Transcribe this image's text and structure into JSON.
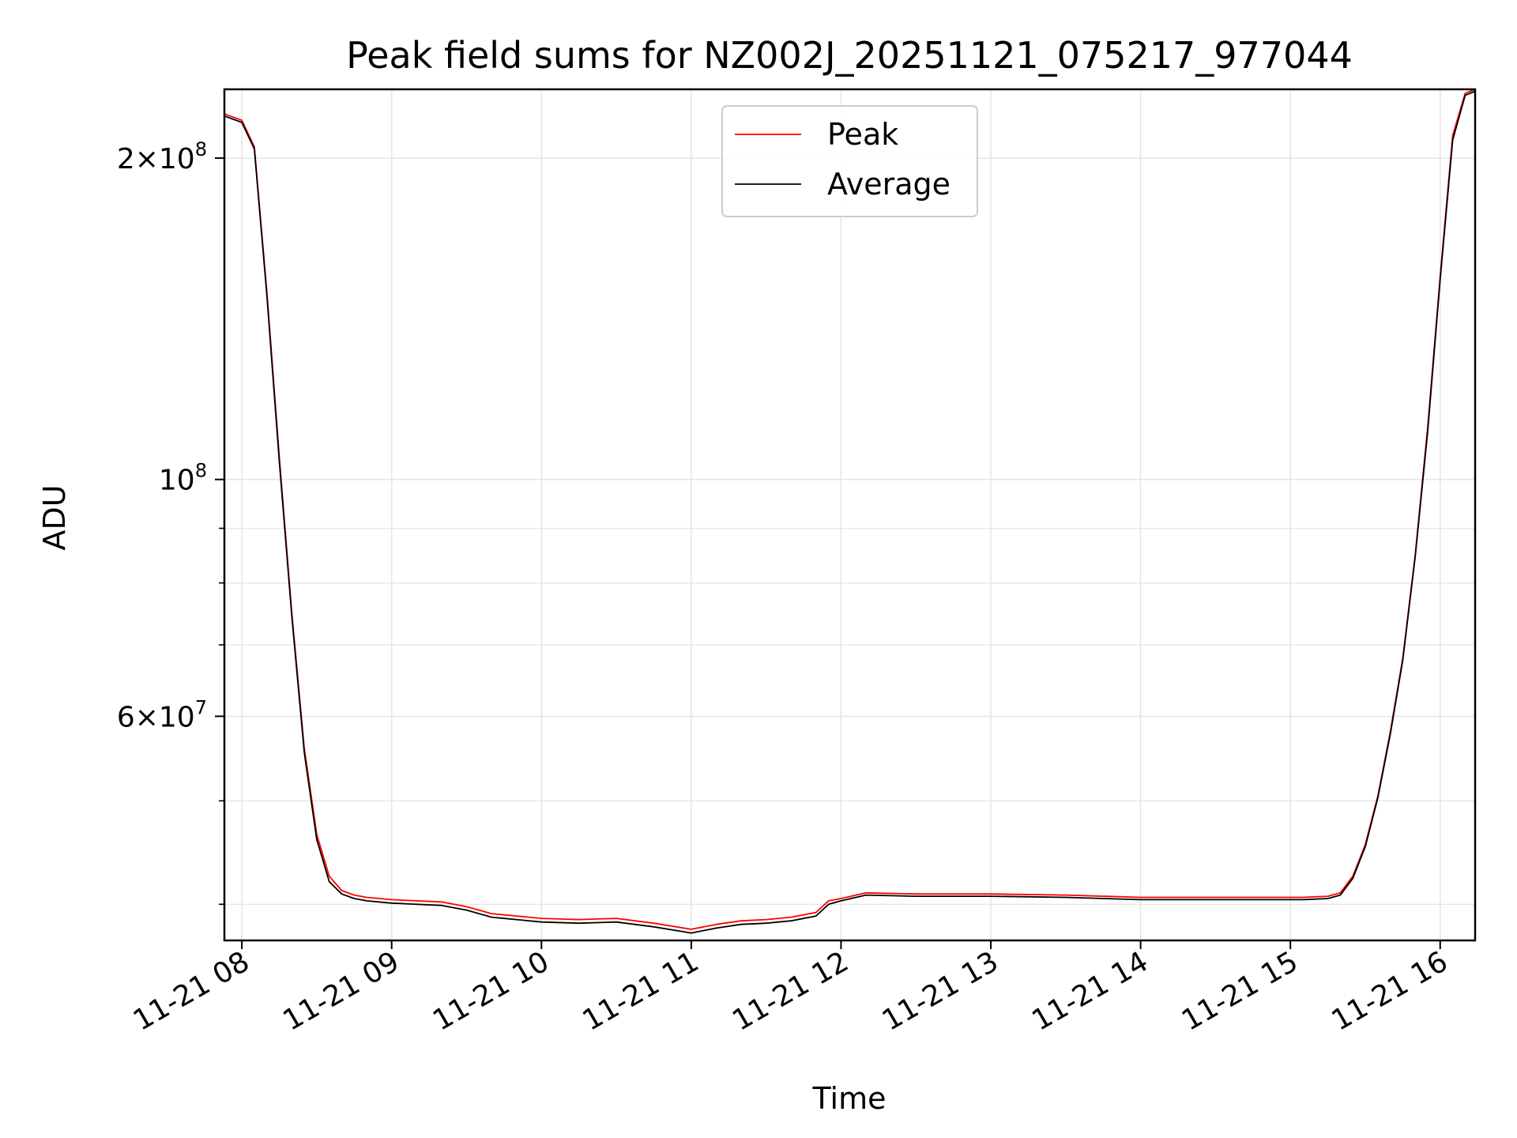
{
  "chart_data": {
    "type": "line",
    "title": "Peak field sums for NZ002J_20251121_075217_977044",
    "xlabel": "Time",
    "ylabel": "ADU",
    "y_scale": "log",
    "ylim": [
      37000000,
      232000000
    ],
    "xlim": [
      "2025-11-21 07:53",
      "2025-11-21 16:14"
    ],
    "grid": true,
    "legend_position": "upper center",
    "x_tick_labels": [
      "11-21 08",
      "11-21 09",
      "11-21 10",
      "11-21 11",
      "11-21 12",
      "11-21 13",
      "11-21 14",
      "11-21 15",
      "11-21 16"
    ],
    "y_tick_labels": [
      {
        "value": 200000000,
        "mantissa": "2",
        "times": "×",
        "base": "10",
        "exponent": "8"
      },
      {
        "value": 100000000,
        "mantissa": "",
        "times": "",
        "base": "10",
        "exponent": "8"
      },
      {
        "value": 60000000,
        "mantissa": "6",
        "times": "×",
        "base": "10",
        "exponent": "7"
      }
    ],
    "series": [
      {
        "name": "Peak",
        "color": "#ff0000",
        "x": [
          "2025-11-21 07:53",
          "2025-11-21 08:00",
          "2025-11-21 08:05",
          "2025-11-21 08:10",
          "2025-11-21 08:15",
          "2025-11-21 08:20",
          "2025-11-21 08:25",
          "2025-11-21 08:30",
          "2025-11-21 08:35",
          "2025-11-21 08:40",
          "2025-11-21 08:45",
          "2025-11-21 08:50",
          "2025-11-21 09:00",
          "2025-11-21 09:20",
          "2025-11-21 09:30",
          "2025-11-21 09:40",
          "2025-11-21 09:50",
          "2025-11-21 10:00",
          "2025-11-21 10:15",
          "2025-11-21 10:30",
          "2025-11-21 10:45",
          "2025-11-21 11:00",
          "2025-11-21 11:10",
          "2025-11-21 11:20",
          "2025-11-21 11:30",
          "2025-11-21 11:40",
          "2025-11-21 11:50",
          "2025-11-21 11:55",
          "2025-11-21 12:00",
          "2025-11-21 12:10",
          "2025-11-21 12:30",
          "2025-11-21 13:00",
          "2025-11-21 13:30",
          "2025-11-21 14:00",
          "2025-11-21 14:30",
          "2025-11-21 14:50",
          "2025-11-21 15:05",
          "2025-11-21 15:15",
          "2025-11-21 15:20",
          "2025-11-21 15:25",
          "2025-11-21 15:30",
          "2025-11-21 15:35",
          "2025-11-21 15:40",
          "2025-11-21 15:45",
          "2025-11-21 15:50",
          "2025-11-21 15:55",
          "2025-11-21 16:00",
          "2025-11-21 16:05",
          "2025-11-21 16:10",
          "2025-11-21 16:14"
        ],
        "y": [
          220000000,
          217000000,
          205000000,
          150000000,
          105000000,
          75000000,
          56000000,
          46500000,
          42500000,
          41200000,
          40800000,
          40600000,
          40400000,
          40200000,
          39800000,
          39200000,
          39000000,
          38800000,
          38700000,
          38800000,
          38400000,
          37900000,
          38300000,
          38600000,
          38700000,
          38900000,
          39300000,
          40300000,
          40500000,
          41000000,
          40900000,
          40900000,
          40800000,
          40600000,
          40600000,
          40600000,
          40600000,
          40700000,
          41000000,
          42500000,
          45500000,
          50500000,
          58000000,
          68000000,
          85000000,
          112000000,
          155000000,
          210000000,
          230000000,
          232000000
        ]
      },
      {
        "name": "Average",
        "color": "#000000",
        "x": [
          "2025-11-21 07:53",
          "2025-11-21 08:00",
          "2025-11-21 08:05",
          "2025-11-21 08:10",
          "2025-11-21 08:15",
          "2025-11-21 08:20",
          "2025-11-21 08:25",
          "2025-11-21 08:30",
          "2025-11-21 08:35",
          "2025-11-21 08:40",
          "2025-11-21 08:45",
          "2025-11-21 08:50",
          "2025-11-21 09:00",
          "2025-11-21 09:20",
          "2025-11-21 09:30",
          "2025-11-21 09:40",
          "2025-11-21 09:50",
          "2025-11-21 10:00",
          "2025-11-21 10:15",
          "2025-11-21 10:30",
          "2025-11-21 10:45",
          "2025-11-21 11:00",
          "2025-11-21 11:10",
          "2025-11-21 11:20",
          "2025-11-21 11:30",
          "2025-11-21 11:40",
          "2025-11-21 11:50",
          "2025-11-21 11:55",
          "2025-11-21 12:00",
          "2025-11-21 12:10",
          "2025-11-21 12:30",
          "2025-11-21 13:00",
          "2025-11-21 13:30",
          "2025-11-21 14:00",
          "2025-11-21 14:30",
          "2025-11-21 14:50",
          "2025-11-21 15:05",
          "2025-11-21 15:15",
          "2025-11-21 15:20",
          "2025-11-21 15:25",
          "2025-11-21 15:30",
          "2025-11-21 15:35",
          "2025-11-21 15:40",
          "2025-11-21 15:45",
          "2025-11-21 15:50",
          "2025-11-21 15:55",
          "2025-11-21 16:00",
          "2025-11-21 16:05",
          "2025-11-21 16:10",
          "2025-11-21 16:14"
        ],
        "y": [
          219000000,
          216000000,
          204000000,
          149000000,
          104000000,
          74500000,
          55500000,
          46000000,
          42000000,
          40900000,
          40500000,
          40300000,
          40100000,
          39900000,
          39500000,
          38900000,
          38700000,
          38500000,
          38400000,
          38500000,
          38100000,
          37600000,
          38000000,
          38300000,
          38400000,
          38600000,
          39000000,
          40000000,
          40300000,
          40800000,
          40700000,
          40700000,
          40600000,
          40400000,
          40400000,
          40400000,
          40400000,
          40500000,
          40800000,
          42300000,
          45300000,
          50300000,
          57700000,
          67700000,
          84700000,
          111000000,
          154000000,
          208000000,
          229000000,
          231000000
        ]
      }
    ]
  }
}
